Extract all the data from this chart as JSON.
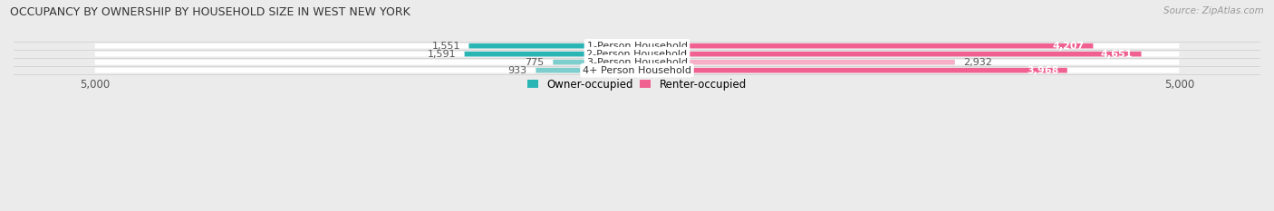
{
  "title": "OCCUPANCY BY OWNERSHIP BY HOUSEHOLD SIZE IN WEST NEW YORK",
  "source": "Source: ZipAtlas.com",
  "categories": [
    "1-Person Household",
    "2-Person Household",
    "3-Person Household",
    "4+ Person Household"
  ],
  "owner_values": [
    1551,
    1591,
    775,
    933
  ],
  "renter_values": [
    4207,
    4651,
    2932,
    3968
  ],
  "owner_colors": [
    "#2ab5b5",
    "#2ab5b5",
    "#7ecece",
    "#7ecece"
  ],
  "renter_colors": [
    "#f06090",
    "#f06090",
    "#f5b0c8",
    "#f06090"
  ],
  "renter_label_inside": [
    true,
    true,
    false,
    true
  ],
  "background_color": "#ebebeb",
  "axis_max": 5000,
  "bar_height": 0.62,
  "figsize": [
    14.06,
    2.33
  ],
  "dpi": 100
}
